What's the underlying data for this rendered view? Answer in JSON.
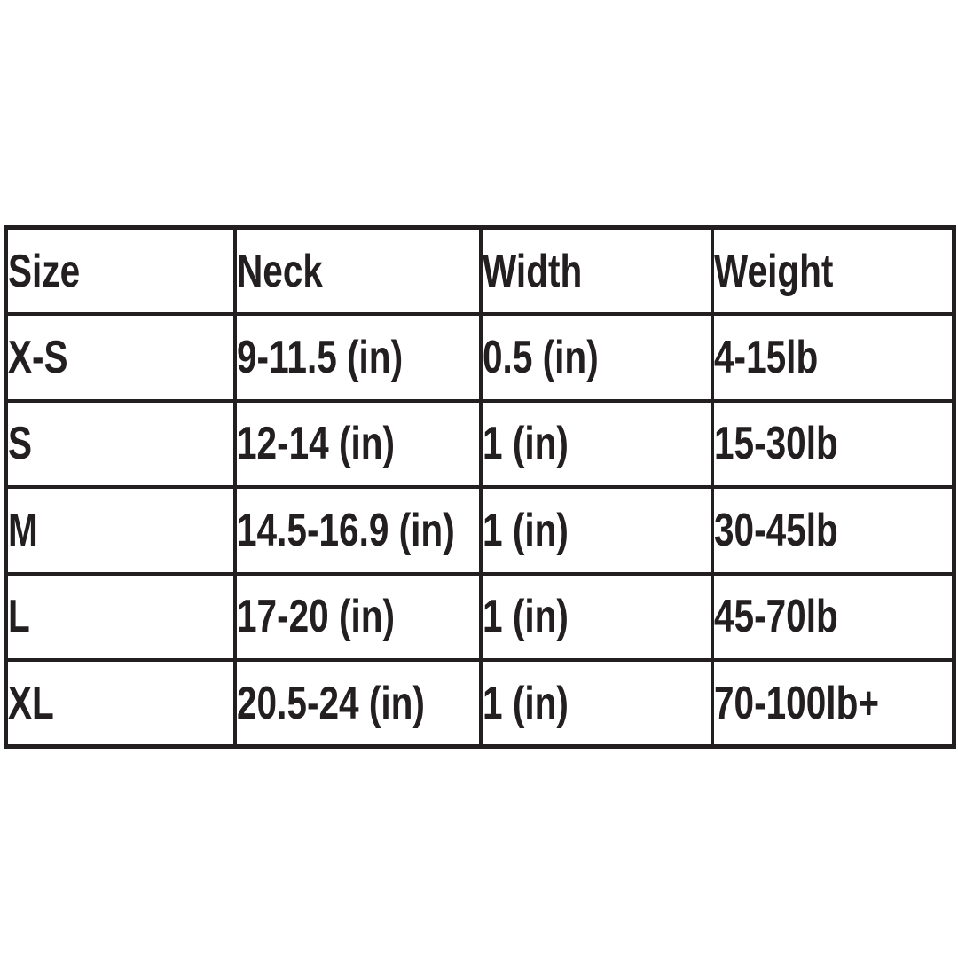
{
  "table": {
    "headers": [
      "Size",
      "Neck",
      "Width",
      "Weight"
    ],
    "rows": [
      {
        "size": "X-S",
        "neck": "9-11.5 (in)",
        "width": "0.5 (in)",
        "weight": "4-15lb"
      },
      {
        "size": "S",
        "neck": "12-14 (in)",
        "width": "1 (in)",
        "weight": "15-30lb"
      },
      {
        "size": "M",
        "neck": "14.5-16.9 (in)",
        "width": "1 (in)",
        "weight": "30-45lb"
      },
      {
        "size": "L",
        "neck": "17-20 (in)",
        "width": "1 (in)",
        "weight": "45-70lb"
      },
      {
        "size": "XL",
        "neck": "20.5-24 (in)",
        "width": "1 (in)",
        "weight": "70-100lb+"
      }
    ],
    "colors": {
      "text": "#231f20",
      "border": "#231f20",
      "background": "#ffffff"
    }
  }
}
